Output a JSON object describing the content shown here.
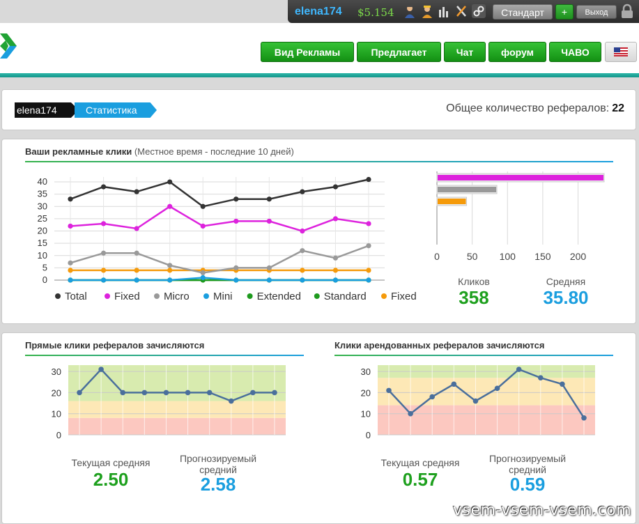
{
  "account": {
    "username": "elena174",
    "balance": "$5.154",
    "membership": "Стандарт",
    "upgrade_label": "+",
    "logout_label": "Выход",
    "icons": [
      "referrals-icon",
      "rented-referrals-icon",
      "stats-icon",
      "tools-icon",
      "link-icon"
    ]
  },
  "nav": {
    "items": [
      "Вид Рекламы",
      "Предлагает",
      "Чат",
      "форум",
      "ЧАВО"
    ],
    "language_flag": "us-flag-icon"
  },
  "breadcrumb": {
    "user": "elena174",
    "page": "Статистика"
  },
  "referrals_total": {
    "label": "Общее количество рефералов:",
    "value": "22"
  },
  "ad_clicks": {
    "title": "Ваши рекламные клики",
    "subtitle": "(Местное время - последние 10 дней)",
    "clicks_label": "Кликов",
    "clicks_value": "358",
    "average_label": "Средняя",
    "average_value": "35.80"
  },
  "direct_referrals": {
    "title": "Прямые клики рефералов зачисляются",
    "current_label": "Текущая средняя",
    "current_value": "2.50",
    "forecast_label": "Прогнозируемый средний",
    "forecast_value": "2.58"
  },
  "rented_referrals": {
    "title": "Клики арендованных рефералов зачисляются",
    "current_label": "Текущая средняя",
    "current_value": "0.57",
    "forecast_label": "Прогнозируемый средний",
    "forecast_value": "0.59"
  },
  "watermark": "vsem-vsem-vsem.com",
  "chart_data": [
    {
      "type": "line",
      "x": [
        1,
        2,
        3,
        4,
        5,
        6,
        7,
        8,
        9,
        10
      ],
      "ylim": [
        0,
        42
      ],
      "yticks": [
        0,
        5,
        10,
        15,
        20,
        25,
        30,
        35,
        40
      ],
      "grid": true,
      "legend": "bottom",
      "series": [
        {
          "name": "Total",
          "color": "#333333",
          "values": [
            33,
            38,
            36,
            40,
            30,
            33,
            33,
            36,
            38,
            41
          ]
        },
        {
          "name": "Fixed",
          "color": "#dd22dd",
          "values": [
            22,
            23,
            21,
            30,
            22,
            24,
            24,
            20,
            25,
            23
          ]
        },
        {
          "name": "Micro",
          "color": "#999999",
          "values": [
            7,
            11,
            11,
            6,
            3,
            5,
            5,
            12,
            9,
            14
          ]
        },
        {
          "name": "Mini",
          "color": "#1a9edf",
          "values": [
            0,
            0,
            0,
            0,
            1,
            0,
            0,
            0,
            0,
            0
          ]
        },
        {
          "name": "Extended",
          "color": "#1e9a1e",
          "values": [
            0,
            0,
            0,
            0,
            0,
            0,
            0,
            0,
            0,
            0
          ]
        },
        {
          "name": "Standard",
          "color": "#1e9a1e",
          "values": [
            0,
            0,
            0,
            0,
            0,
            0,
            0,
            0,
            0,
            0
          ]
        },
        {
          "name": "Fixed",
          "color": "#f59a0a",
          "values": [
            4,
            4,
            4,
            4,
            4,
            4,
            4,
            4,
            4,
            4
          ]
        }
      ]
    },
    {
      "type": "bar",
      "orientation": "horizontal",
      "xlim": [
        0,
        235
      ],
      "xticks": [
        0,
        50,
        100,
        150,
        200
      ],
      "bars": [
        {
          "color": "#dd22dd",
          "value": 235
        },
        {
          "color": "#999999",
          "value": 83
        },
        {
          "color": "#f59a0a",
          "value": 40
        }
      ]
    },
    {
      "type": "line",
      "x": [
        1,
        2,
        3,
        4,
        5,
        6,
        7,
        8,
        9,
        10
      ],
      "ylim": [
        0,
        33
      ],
      "yticks": [
        0,
        10,
        20,
        30
      ],
      "bands": [
        {
          "from": 0,
          "to": 8,
          "color": "#fcc8c0"
        },
        {
          "from": 8,
          "to": 16,
          "color": "#fde8b6"
        },
        {
          "from": 16,
          "to": 33,
          "color": "#d8ebaf"
        }
      ],
      "series": [
        {
          "color": "#4a6f9c",
          "values": [
            20,
            31,
            20,
            20,
            20,
            20,
            20,
            16,
            20,
            20
          ]
        }
      ]
    },
    {
      "type": "line",
      "x": [
        1,
        2,
        3,
        4,
        5,
        6,
        7,
        8,
        9,
        10
      ],
      "ylim": [
        0,
        33
      ],
      "yticks": [
        0,
        10,
        20,
        30
      ],
      "bands": [
        {
          "from": 0,
          "to": 14,
          "color": "#fcc8c0"
        },
        {
          "from": 14,
          "to": 27,
          "color": "#fde8b6"
        },
        {
          "from": 27,
          "to": 33,
          "color": "#d8ebaf"
        }
      ],
      "series": [
        {
          "color": "#4a6f9c",
          "values": [
            21,
            10,
            18,
            24,
            16,
            22,
            31,
            27,
            24,
            8
          ]
        }
      ]
    }
  ]
}
